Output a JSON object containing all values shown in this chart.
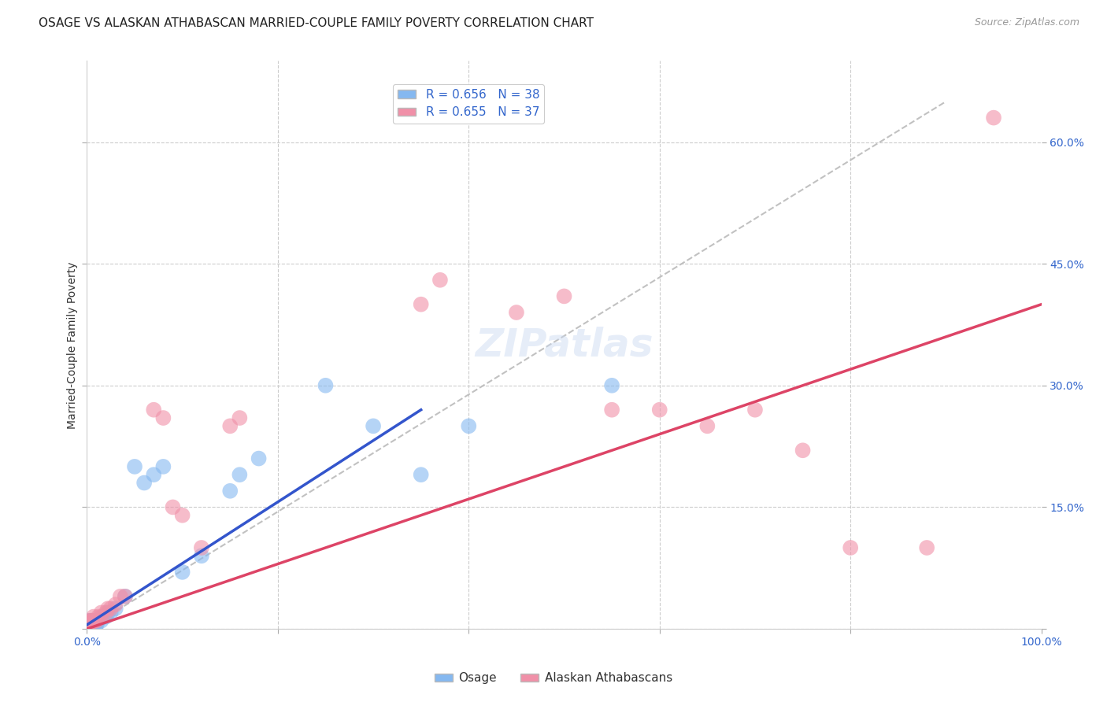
{
  "title": "OSAGE VS ALASKAN ATHABASCAN MARRIED-COUPLE FAMILY POVERTY CORRELATION CHART",
  "source": "Source: ZipAtlas.com",
  "ylabel": "Married-Couple Family Poverty",
  "xlim": [
    0,
    1.0
  ],
  "ylim": [
    0,
    0.7
  ],
  "xticks": [
    0.0,
    0.2,
    0.4,
    0.6,
    0.8,
    1.0
  ],
  "xticklabels": [
    "0.0%",
    "",
    "",
    "",
    "",
    "100.0%"
  ],
  "yticks": [
    0.0,
    0.15,
    0.3,
    0.45,
    0.6
  ],
  "yticklabels": [
    "",
    "15.0%",
    "30.0%",
    "45.0%",
    "60.0%"
  ],
  "osage_color": "#85b8f0",
  "athabascan_color": "#f090a8",
  "trend_osage_color": "#3355cc",
  "trend_athabascan_color": "#dd4466",
  "trend_dashed_color": "#bbbbbb",
  "watermark": "ZIPatlas",
  "background_color": "#ffffff",
  "grid_color": "#cccccc",
  "osage_points": [
    [
      0.0,
      0.0
    ],
    [
      0.001,
      0.0
    ],
    [
      0.002,
      0.0
    ],
    [
      0.003,
      0.0
    ],
    [
      0.003,
      0.01
    ],
    [
      0.004,
      0.0
    ],
    [
      0.004,
      0.01
    ],
    [
      0.005,
      0.005
    ],
    [
      0.005,
      0.01
    ],
    [
      0.006,
      0.005
    ],
    [
      0.007,
      0.005
    ],
    [
      0.007,
      0.01
    ],
    [
      0.008,
      0.01
    ],
    [
      0.009,
      0.0
    ],
    [
      0.01,
      0.005
    ],
    [
      0.01,
      0.01
    ],
    [
      0.012,
      0.01
    ],
    [
      0.015,
      0.01
    ],
    [
      0.016,
      0.015
    ],
    [
      0.02,
      0.015
    ],
    [
      0.022,
      0.02
    ],
    [
      0.025,
      0.02
    ],
    [
      0.03,
      0.025
    ],
    [
      0.04,
      0.04
    ],
    [
      0.05,
      0.2
    ],
    [
      0.06,
      0.18
    ],
    [
      0.07,
      0.19
    ],
    [
      0.08,
      0.2
    ],
    [
      0.1,
      0.07
    ],
    [
      0.12,
      0.09
    ],
    [
      0.15,
      0.17
    ],
    [
      0.16,
      0.19
    ],
    [
      0.18,
      0.21
    ],
    [
      0.25,
      0.3
    ],
    [
      0.3,
      0.25
    ],
    [
      0.35,
      0.19
    ],
    [
      0.4,
      0.25
    ],
    [
      0.55,
      0.3
    ]
  ],
  "athabascan_points": [
    [
      0.0,
      0.0
    ],
    [
      0.0,
      0.005
    ],
    [
      0.002,
      0.005
    ],
    [
      0.003,
      0.01
    ],
    [
      0.005,
      0.01
    ],
    [
      0.006,
      0.01
    ],
    [
      0.007,
      0.015
    ],
    [
      0.008,
      0.01
    ],
    [
      0.01,
      0.01
    ],
    [
      0.012,
      0.015
    ],
    [
      0.015,
      0.015
    ],
    [
      0.015,
      0.02
    ],
    [
      0.02,
      0.02
    ],
    [
      0.022,
      0.025
    ],
    [
      0.025,
      0.025
    ],
    [
      0.03,
      0.03
    ],
    [
      0.035,
      0.04
    ],
    [
      0.04,
      0.04
    ],
    [
      0.07,
      0.27
    ],
    [
      0.08,
      0.26
    ],
    [
      0.09,
      0.15
    ],
    [
      0.1,
      0.14
    ],
    [
      0.12,
      0.1
    ],
    [
      0.15,
      0.25
    ],
    [
      0.16,
      0.26
    ],
    [
      0.35,
      0.4
    ],
    [
      0.37,
      0.43
    ],
    [
      0.45,
      0.39
    ],
    [
      0.5,
      0.41
    ],
    [
      0.55,
      0.27
    ],
    [
      0.6,
      0.27
    ],
    [
      0.65,
      0.25
    ],
    [
      0.7,
      0.27
    ],
    [
      0.75,
      0.22
    ],
    [
      0.8,
      0.1
    ],
    [
      0.88,
      0.1
    ],
    [
      0.95,
      0.63
    ]
  ],
  "osage_line": [
    [
      0.0,
      0.005
    ],
    [
      0.35,
      0.27
    ]
  ],
  "athabascan_line": [
    [
      0.0,
      0.0
    ],
    [
      1.0,
      0.4
    ]
  ],
  "dashed_line": [
    [
      0.0,
      0.0
    ],
    [
      0.9,
      0.65
    ]
  ],
  "title_fontsize": 11,
  "axis_label_fontsize": 10,
  "tick_fontsize": 10,
  "legend_fontsize": 11,
  "watermark_fontsize": 36
}
